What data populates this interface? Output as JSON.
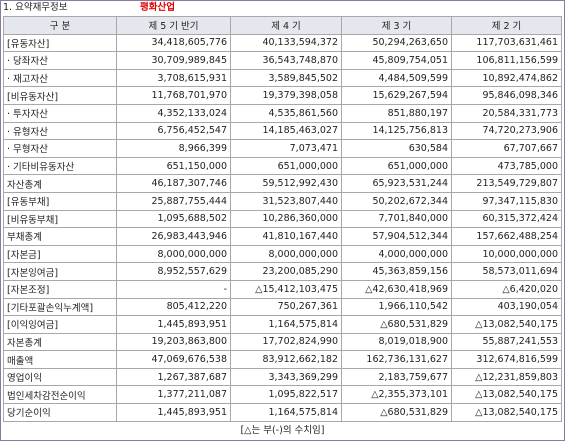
{
  "title": "1. 요약재무정보",
  "company": "평화산업",
  "table": {
    "header": [
      "구 분",
      "제 5 기 반기",
      "제 4 기",
      "제 3 기",
      "제 2 기"
    ],
    "rows": [
      [
        "[유동자산]",
        "34,418,605,776",
        "40,133,594,372",
        "50,294,263,650",
        "117,703,631,461"
      ],
      [
        "· 당좌자산",
        "30,709,989,845",
        "36,543,748,870",
        "45,809,754,051",
        "106,811,156,599"
      ],
      [
        "· 재고자산",
        "3,708,615,931",
        "3,589,845,502",
        "4,484,509,599",
        "10,892,474,862"
      ],
      [
        "[비유동자산]",
        "11,768,701,970",
        "19,379,398,058",
        "15,629,267,594",
        "95,846,098,346"
      ],
      [
        "· 투자자산",
        "4,352,133,024",
        "4,535,861,560",
        "851,880,197",
        "20,584,331,773"
      ],
      [
        "· 유형자산",
        "6,756,452,547",
        "14,185,463,027",
        "14,125,756,813",
        "74,720,273,906"
      ],
      [
        "· 무형자산",
        "8,966,399",
        "7,073,471",
        "630,584",
        "67,707,667"
      ],
      [
        "· 기타비유동자산",
        "651,150,000",
        "651,000,000",
        "651,000,000",
        "473,785,000"
      ],
      [
        "자산총계",
        "46,187,307,746",
        "59,512,992,430",
        "65,923,531,244",
        "213,549,729,807"
      ],
      [
        "[유동부채]",
        "25,887,755,444",
        "31,523,807,440",
        "50,202,672,344",
        "97,347,115,830"
      ],
      [
        "[비유동부채]",
        "1,095,688,502",
        "10,286,360,000",
        "7,701,840,000",
        "60,315,372,424"
      ],
      [
        "부채총계",
        "26,983,443,946",
        "41,810,167,440",
        "57,904,512,344",
        "157,662,488,254"
      ],
      [
        "[자본금]",
        "8,000,000,000",
        "8,000,000,000",
        "4,000,000,000",
        "10,000,000,000"
      ],
      [
        "[자본잉여금]",
        "8,952,557,629",
        "23,200,085,290",
        "45,363,859,156",
        "58,573,011,694"
      ],
      [
        "[자본조정]",
        "-",
        "△15,412,103,475",
        "△42,630,418,969",
        "△6,420,020"
      ],
      [
        "[기타포괄손익누계액]",
        "805,412,220",
        "750,267,361",
        "1,966,110,542",
        "403,190,054"
      ],
      [
        "[이익잉여금]",
        "1,445,893,951",
        "1,164,575,814",
        "△680,531,829",
        "△13,082,540,175"
      ],
      [
        "자본총계",
        "19,203,863,800",
        "17,702,824,990",
        "8,019,018,900",
        "55,887,241,553"
      ],
      [
        "매출액",
        "47,069,676,538",
        "83,912,662,182",
        "162,736,131,627",
        "312,674,816,599"
      ],
      [
        "영업이익",
        "1,267,387,687",
        "3,343,369,299",
        "2,183,759,677",
        "△12,231,859,803"
      ],
      [
        "법인세차감전순이익",
        "1,377,211,087",
        "1,095,822,517",
        "△2,355,373,101",
        "△13,082,540,175"
      ],
      [
        "당기순이익",
        "1,445,893,951",
        "1,164,575,814",
        "△680,531,829",
        "△13,082,540,175"
      ]
    ]
  },
  "footer": "[△는 부(-)의 수치임]"
}
